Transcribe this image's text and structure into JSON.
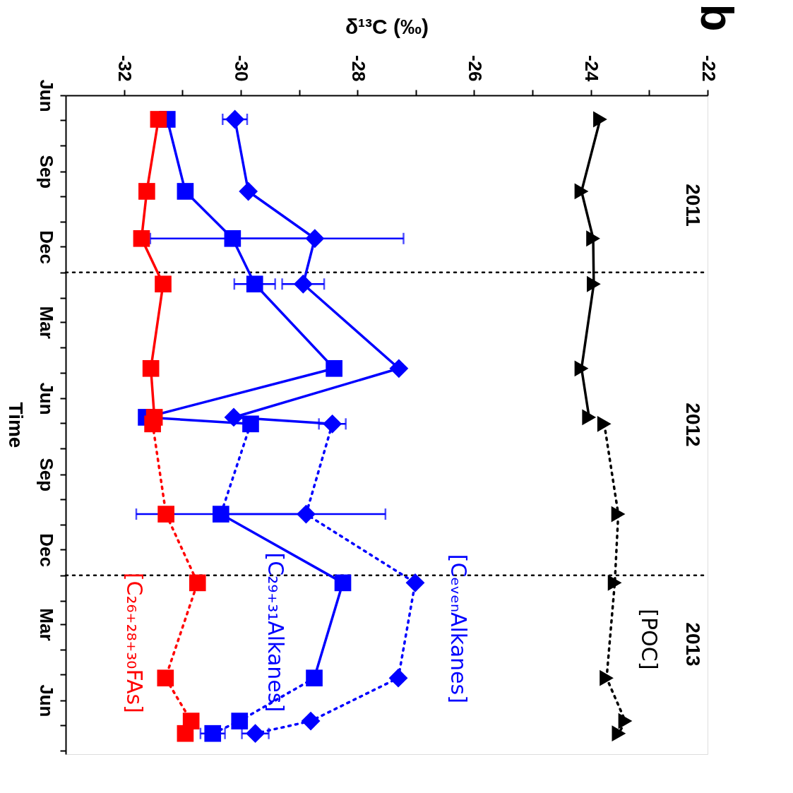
{
  "chart_data": {
    "type": "line",
    "orientation": "horizontal",
    "xlabel": "δ¹³C (‰)",
    "ylabel": "Time",
    "ylim": [
      "2013-08-05",
      "2011-06-01"
    ],
    "yticks": [
      {
        "value": "2011-06-01",
        "label": "Jun"
      },
      {
        "value": "2011-07-01",
        "label": null
      },
      {
        "value": "2011-08-01",
        "label": null
      },
      {
        "value": "2011-09-01",
        "label": "Sep"
      },
      {
        "value": "2011-10-01",
        "label": null
      },
      {
        "value": "2011-11-01",
        "label": null
      },
      {
        "value": "2011-12-01",
        "label": "Dec"
      },
      {
        "value": "2012-01-01",
        "label": null
      },
      {
        "value": "2012-02-01",
        "label": null
      },
      {
        "value": "2012-03-01",
        "label": "Mar"
      },
      {
        "value": "2012-04-01",
        "label": null
      },
      {
        "value": "2012-05-01",
        "label": null
      },
      {
        "value": "2012-06-01",
        "label": "Jun"
      },
      {
        "value": "2012-07-01",
        "label": null
      },
      {
        "value": "2012-08-01",
        "label": null
      },
      {
        "value": "2012-09-01",
        "label": "Sep"
      },
      {
        "value": "2012-10-01",
        "label": null
      },
      {
        "value": "2012-11-01",
        "label": null
      },
      {
        "value": "2012-12-01",
        "label": "Dec"
      },
      {
        "value": "2013-01-01",
        "label": null
      },
      {
        "value": "2013-02-01",
        "label": null
      },
      {
        "value": "2013-03-01",
        "label": "Mar"
      },
      {
        "value": "2013-04-01",
        "label": null
      },
      {
        "value": "2013-05-01",
        "label": null
      },
      {
        "value": "2013-06-01",
        "label": "Jun"
      },
      {
        "value": "2013-07-01",
        "label": null
      },
      {
        "value": "2013-08-01",
        "label": null
      }
    ],
    "xlim": [
      -33,
      -22
    ],
    "xticks": [
      -32,
      {
        "value": -31,
        "label": null
      },
      -30,
      {
        "value": -29,
        "label": null
      },
      -28,
      {
        "value": -27,
        "label": null
      },
      -26,
      {
        "value": -25,
        "label": null
      },
      -24,
      {
        "value": -23,
        "label": null
      },
      -22
    ],
    "series": [
      {
        "marker": "none",
        "line_style": "solid",
        "color": "#000000",
        "x": [
          "2011-06-30",
          "2011-09-25",
          "2011-11-21",
          "2012-01-15",
          "2012-04-26",
          "2012-06-24"
        ],
        "values": [
          -23.84,
          -24.16,
          -23.96,
          -23.95,
          -24.16,
          -24.03
        ]
      },
      {
        "marker": "none",
        "line_style": "dotted",
        "color": "#000000",
        "x": [
          "2012-07-02",
          "2012-10-19",
          "2013-01-10",
          "2013-05-05",
          "2013-06-26",
          "2013-07-11"
        ],
        "values": [
          -23.77,
          -23.53,
          -23.59,
          -23.73,
          -23.41,
          -23.52
        ]
      },
      {
        "marker": "none",
        "line_style": "solid",
        "color": "#0000ff",
        "x": [
          "2011-06-30",
          "2011-09-25",
          "2011-11-21",
          "2012-01-15",
          "2012-04-26",
          "2012-06-24",
          "2012-07-02"
        ],
        "values": [
          -30.1,
          -29.87,
          -28.73,
          -28.93,
          -27.29,
          -30.12,
          -28.43
        ]
      },
      {
        "marker": "none",
        "line_style": "dotted",
        "color": "#0000ff",
        "x": [
          "2012-07-02",
          "2012-10-19",
          "2013-01-10",
          "2013-05-05",
          "2013-06-26",
          "2013-07-11"
        ],
        "values": [
          -28.43,
          -28.88,
          -27.01,
          -27.3,
          -28.8,
          -29.75
        ]
      },
      {
        "marker": "none",
        "line_style": "solid",
        "color": "#0000ff",
        "x": [
          "2011-06-30",
          "2011-09-25",
          "2011-11-21",
          "2012-01-15",
          "2012-04-26",
          "2012-06-24",
          "2012-07-02"
        ],
        "values": [
          -31.26,
          -30.95,
          -30.14,
          -29.76,
          -28.4,
          -31.62,
          -29.83
        ]
      },
      {
        "marker": "none",
        "line_style": "dotted",
        "color": "#0000ff",
        "x": [
          "2012-07-02",
          "2012-10-19"
        ],
        "values": [
          -29.83,
          -30.34
        ]
      },
      {
        "marker": "none",
        "line_style": "solid",
        "color": "#0000ff",
        "x": [
          "2012-10-19",
          "2013-01-10",
          "2013-05-05"
        ],
        "values": [
          -30.34,
          -28.25,
          -28.74
        ]
      },
      {
        "marker": "none",
        "line_style": "dotted",
        "color": "#0000ff",
        "x": [
          "2013-05-05",
          "2013-06-26",
          "2013-07-11"
        ],
        "values": [
          -28.74,
          -30.02,
          -30.48
        ]
      },
      {
        "marker": "none",
        "line_style": "solid",
        "color": "#ff0000",
        "x": [
          "2011-06-30",
          "2011-09-25",
          "2011-11-21",
          "2012-01-15",
          "2012-04-26",
          "2012-06-24"
        ],
        "values": [
          -31.41,
          -31.61,
          -31.7,
          -31.33,
          -31.54,
          -31.48
        ]
      },
      {
        "marker": "none",
        "line_style": "dotted",
        "color": "#ff0000",
        "x": [
          "2012-07-02",
          "2012-10-19",
          "2013-01-10",
          "2013-05-05",
          "2013-06-26",
          "2013-07-11"
        ],
        "values": [
          -31.51,
          -31.28,
          -30.74,
          -31.29,
          -30.85,
          -30.95
        ]
      },
      {
        "type": "scatter",
        "name": "[POC]",
        "marker": "triangle",
        "color": "#000000",
        "x": [
          "2011-06-30",
          "2011-09-25",
          "2011-11-21",
          "2012-01-15",
          "2012-04-26",
          "2012-06-24",
          "2012-07-02",
          "2012-10-19",
          "2013-01-10",
          "2013-05-05",
          "2013-06-26",
          "2013-07-11"
        ],
        "values": [
          -23.84,
          -24.16,
          -23.96,
          -23.95,
          -24.16,
          -24.03,
          -23.77,
          -23.53,
          -23.59,
          -23.73,
          -23.41,
          -23.52
        ]
      },
      {
        "type": "scatter",
        "name": "[CₑᵥₑₙAlkanes]",
        "marker": "diamond",
        "color": "#0000ff",
        "x": [
          "2011-06-30",
          "2011-09-25",
          "2011-11-21",
          "2012-01-15",
          "2012-04-26",
          "2012-06-24",
          "2012-07-02",
          "2012-10-19",
          "2013-01-10",
          "2013-05-05",
          "2013-06-26",
          "2013-07-11"
        ],
        "values": [
          -30.1,
          -29.87,
          -28.73,
          -28.93,
          -27.29,
          -30.12,
          -28.43,
          -28.88,
          -27.01,
          -27.3,
          -28.8,
          -29.75
        ],
        "errors": [
          0.21,
          null,
          1.52,
          0.36,
          null,
          null,
          0.23,
          1.36,
          null,
          null,
          null,
          0.23
        ]
      },
      {
        "type": "scatter",
        "name": "[C₂₉₊₃₁Alkanes]",
        "marker": "square",
        "color": "#0000ff",
        "x": [
          "2011-06-30",
          "2011-09-25",
          "2011-11-21",
          "2012-01-15",
          "2012-04-26",
          "2012-06-24",
          "2012-07-02",
          "2012-10-19",
          "2013-01-10",
          "2013-05-05",
          "2013-06-26",
          "2013-07-11"
        ],
        "values": [
          -31.26,
          -30.95,
          -30.14,
          -29.76,
          -28.4,
          -31.62,
          -29.83,
          -30.34,
          -28.25,
          -28.74,
          -30.02,
          -30.48
        ],
        "errors": [
          null,
          null,
          1.41,
          0.35,
          null,
          null,
          null,
          1.45,
          null,
          null,
          null,
          0.21
        ]
      },
      {
        "type": "scatter",
        "name": "[C₂₆₊₂₈₊₃₀FAs]",
        "marker": "square",
        "color": "#ff0000",
        "x": [
          "2011-06-30",
          "2011-09-25",
          "2011-11-21",
          "2012-01-15",
          "2012-04-26",
          "2012-06-24",
          "2012-07-02",
          "2012-10-19",
          "2013-01-10",
          "2013-05-05",
          "2013-06-26",
          "2013-07-11"
        ],
        "values": [
          -31.41,
          -31.61,
          -31.7,
          -31.33,
          -31.54,
          -31.48,
          -31.51,
          -31.28,
          -30.74,
          -31.29,
          -30.85,
          -30.95
        ],
        "errors": [
          null,
          null,
          null,
          null,
          null,
          null,
          null,
          null,
          0.08,
          null,
          null,
          null
        ]
      }
    ],
    "ref_lines": [
      {
        "axis": "y",
        "value": "2012-01-01",
        "color": "#000000",
        "line_style": "dotted"
      },
      {
        "axis": "y",
        "value": "2013-01-01",
        "color": "#000000",
        "line_style": "dotted"
      }
    ],
    "annotations": [
      "b",
      "2011",
      "2012",
      "2013"
    ]
  }
}
